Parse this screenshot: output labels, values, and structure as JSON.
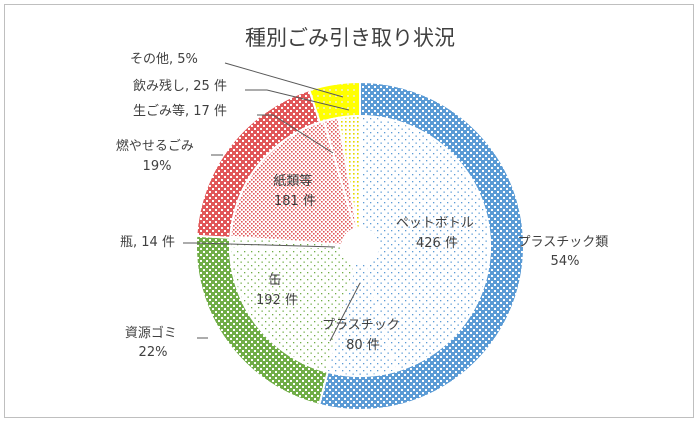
{
  "chart_data": {
    "type": "pie",
    "title": "種別ごみ引き取り状況",
    "outer": {
      "units": "percent",
      "slices": [
        {
          "name": "プラスチック類",
          "value": 54,
          "label_value": "54%",
          "color": "#5b9bd5"
        },
        {
          "name": "資源ゴミ",
          "value": 22,
          "label_value": "22%",
          "color": "#70ad47"
        },
        {
          "name": "燃やせるごみ",
          "value": 19,
          "label_value": "19%",
          "color": "#e15759"
        },
        {
          "name": "その他",
          "value": 5,
          "label_value": "5%",
          "color": "#ffff00"
        }
      ]
    },
    "inner": {
      "units": "件",
      "slices": [
        {
          "name": "ペットボトル",
          "value": 426,
          "label_value": "426 件",
          "color": "#5b9bd5"
        },
        {
          "name": "プラスチック",
          "value": 80,
          "label_value": "80 件",
          "color": "#5b9bd5"
        },
        {
          "name": "缶",
          "value": 192,
          "label_value": "192 件",
          "color": "#70ad47"
        },
        {
          "name": "瓶",
          "value": 14,
          "label_value": "14 件",
          "color": "#70ad47"
        },
        {
          "name": "紙類等",
          "value": 181,
          "label_value": "181 件",
          "color": "#e15759"
        },
        {
          "name": "生ごみ等",
          "value": 17,
          "label_value": "17 件",
          "color": "#e15759"
        },
        {
          "name": "飲み残し",
          "value": 25,
          "label_value": "25 件",
          "color": "#ffff00"
        }
      ]
    },
    "labels": {
      "outer_plastic": [
        "プラスチック類",
        "54%"
      ],
      "outer_resource": [
        "資源ゴミ",
        "22%"
      ],
      "outer_burnable": [
        "燃やせるごみ",
        "19%"
      ],
      "outer_other": "その他, 5%",
      "inner_pet": [
        "ペットボトル",
        "426 件"
      ],
      "inner_plastic": [
        "プラスチック",
        "80 件"
      ],
      "inner_can": [
        "缶",
        "192 件"
      ],
      "inner_paper": [
        "紙類等",
        "181 件"
      ],
      "inner_bottle": "瓶, 14 件",
      "inner_garbage": "生ごみ等, 17 件",
      "inner_leftover": "飲み残し, 25 件"
    }
  }
}
